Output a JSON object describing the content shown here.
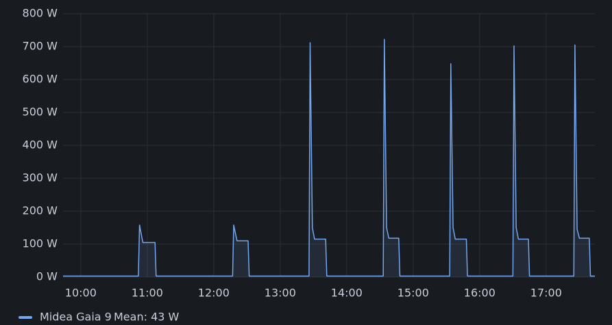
{
  "chart_data": {
    "type": "line",
    "x": [
      "09:44",
      "10:52",
      "10:53",
      "10:56",
      "11:07",
      "11:08",
      "12:17",
      "12:18",
      "12:21",
      "12:31",
      "12:32",
      "13:26",
      "13:27",
      "13:29",
      "13:31",
      "13:41",
      "13:42",
      "14:33",
      "14:34",
      "14:36",
      "14:38",
      "14:47",
      "14:48",
      "15:33",
      "15:34",
      "15:36",
      "15:38",
      "15:48",
      "15:49",
      "16:30",
      "16:31",
      "16:33",
      "16:35",
      "16:44",
      "16:45",
      "17:25",
      "17:26",
      "17:28",
      "17:30",
      "17:39",
      "17:40",
      "17:44"
    ],
    "series": [
      {
        "name": "Midea Gaia 9",
        "color": "#73a6f0",
        "values": [
          3,
          3,
          158,
          105,
          105,
          3,
          3,
          158,
          110,
          110,
          3,
          3,
          712,
          150,
          115,
          115,
          3,
          3,
          722,
          150,
          118,
          118,
          3,
          3,
          648,
          150,
          115,
          115,
          3,
          3,
          702,
          150,
          115,
          115,
          3,
          3,
          705,
          145,
          118,
          118,
          3,
          3
        ]
      }
    ],
    "legend_stat": "Mean: 43 W",
    "xlim": [
      "09:44",
      "17:44"
    ],
    "xticks": [
      "10:00",
      "11:00",
      "12:00",
      "13:00",
      "14:00",
      "15:00",
      "16:00",
      "17:00"
    ],
    "ylim": [
      0,
      800
    ],
    "yticks": [
      {
        "value": 0,
        "label": "0 W"
      },
      {
        "value": 100,
        "label": "100 W"
      },
      {
        "value": 200,
        "label": "200 W"
      },
      {
        "value": 300,
        "label": "300 W"
      },
      {
        "value": 400,
        "label": "400 W"
      },
      {
        "value": 500,
        "label": "500 W"
      },
      {
        "value": 600,
        "label": "600 W"
      },
      {
        "value": 700,
        "label": "700 W"
      },
      {
        "value": 800,
        "label": "800 W"
      }
    ],
    "grid": true
  }
}
